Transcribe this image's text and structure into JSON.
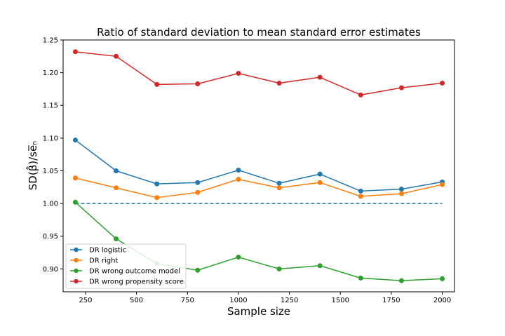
{
  "chart_data": {
    "type": "line",
    "title": "Ratio of standard deviation to mean standard error estimates",
    "xlabel": "Sample size",
    "ylabel": "SD(β̂)/se̅ₙ",
    "xlim": [
      140,
      2060
    ],
    "ylim": [
      0.865,
      1.25
    ],
    "xticks": [
      250,
      500,
      750,
      1000,
      1250,
      1500,
      1750,
      2000
    ],
    "xtick_labels": [
      "250",
      "500",
      "750",
      "1000",
      "1250",
      "1500",
      "1750",
      "2000"
    ],
    "yticks": [
      0.9,
      0.95,
      1.0,
      1.05,
      1.1,
      1.15,
      1.2,
      1.25
    ],
    "ytick_labels": [
      "0.90",
      "0.95",
      "1.00",
      "1.05",
      "1.10",
      "1.15",
      "1.20",
      "1.25"
    ],
    "grid": false,
    "legend_position": "lower-left",
    "x": [
      200,
      400,
      600,
      800,
      1000,
      1200,
      1400,
      1600,
      1800,
      2000
    ],
    "reference_line": {
      "y": 1.0,
      "x_range": [
        200,
        2000
      ],
      "style": "dashed",
      "color": "#1f77b4"
    },
    "series": [
      {
        "name": "DR logistic",
        "color": "#1f77b4",
        "values": [
          1.097,
          1.05,
          1.03,
          1.032,
          1.051,
          1.031,
          1.045,
          1.019,
          1.022,
          1.033
        ]
      },
      {
        "name": "DR right",
        "color": "#ff7f0e",
        "values": [
          1.039,
          1.024,
          1.009,
          1.017,
          1.037,
          1.024,
          1.032,
          1.011,
          1.015,
          1.029
        ]
      },
      {
        "name": "DR wrong outcome model",
        "color": "#2ca02c",
        "values": [
          1.002,
          0.946,
          0.908,
          0.898,
          0.918,
          0.9,
          0.905,
          0.886,
          0.882,
          0.885
        ]
      },
      {
        "name": "DR wrong propensity score",
        "color": "#d62728",
        "values": [
          1.232,
          1.225,
          1.182,
          1.183,
          1.199,
          1.184,
          1.193,
          1.166,
          1.177,
          1.184
        ]
      }
    ]
  }
}
